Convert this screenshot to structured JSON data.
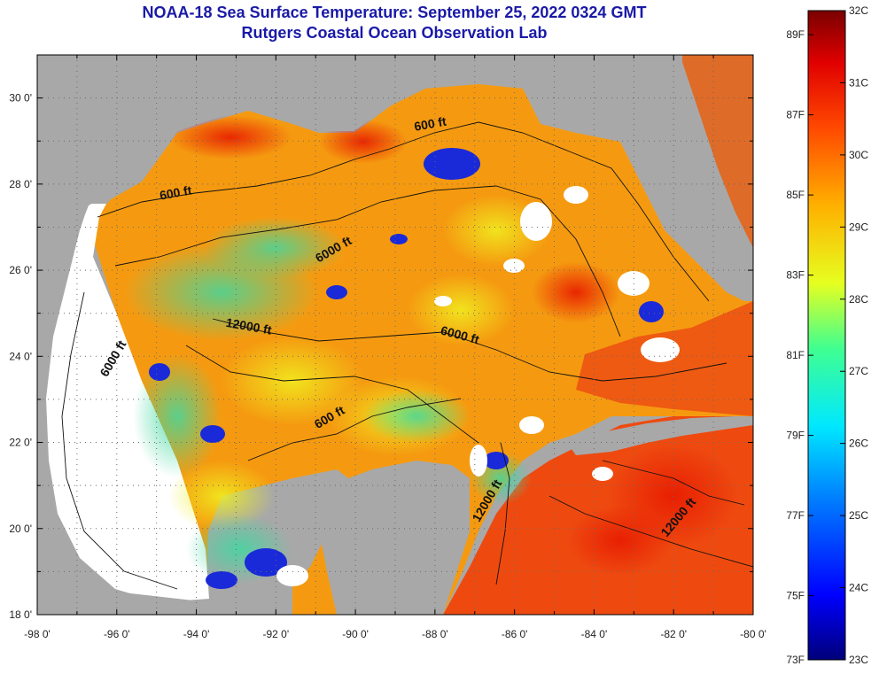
{
  "title_line1": "NOAA-18 Sea Surface Temperature:  September 25, 2022 0324 GMT",
  "title_line2": "Rutgers Coastal Ocean Observation Lab",
  "map": {
    "lon_range": [
      -98,
      -80
    ],
    "lat_range": [
      18,
      31
    ],
    "lon_ticks": [
      "-98 0'",
      "-96 0'",
      "-94 0'",
      "-92 0'",
      "-90 0'",
      "-88 0'",
      "-86 0'",
      "-84 0'",
      "-82 0'",
      "-80 0'"
    ],
    "lat_ticks": [
      "18 0'",
      "20 0'",
      "22 0'",
      "24 0'",
      "26 0'",
      "28 0'",
      "30 0'"
    ],
    "contour_labels": [
      {
        "text": "600 ft",
        "lon": -94.5,
        "lat": 27.7,
        "angle": -10
      },
      {
        "text": "600 ft",
        "lon": -88.1,
        "lat": 29.3,
        "angle": -10
      },
      {
        "text": "6000 ft",
        "lon": -90.5,
        "lat": 26.4,
        "angle": -30
      },
      {
        "text": "6000 ft",
        "lon": -87.4,
        "lat": 24.4,
        "angle": 15
      },
      {
        "text": "6000 ft",
        "lon": -96.0,
        "lat": 23.9,
        "angle": -60
      },
      {
        "text": "12000 ft",
        "lon": -92.7,
        "lat": 24.6,
        "angle": 10
      },
      {
        "text": "600 ft",
        "lon": -90.6,
        "lat": 22.5,
        "angle": -30
      },
      {
        "text": "12000 ft",
        "lon": -86.6,
        "lat": 20.6,
        "angle": -60
      },
      {
        "text": "12000 ft",
        "lon": -81.8,
        "lat": 20.2,
        "angle": -50
      }
    ],
    "colors": {
      "land": "#a8a8a8",
      "no_data": "#ffffff",
      "contour": "#111111"
    }
  },
  "colorbar": {
    "fahrenheit": [
      "89F",
      "87F",
      "85F",
      "83F",
      "81F",
      "79F",
      "77F",
      "75F",
      "73F"
    ],
    "celsius": [
      "32C",
      "31C",
      "30C",
      "29C",
      "28C",
      "27C",
      "26C",
      "25C",
      "24C",
      "23C"
    ],
    "range_c": [
      23,
      32
    ]
  }
}
